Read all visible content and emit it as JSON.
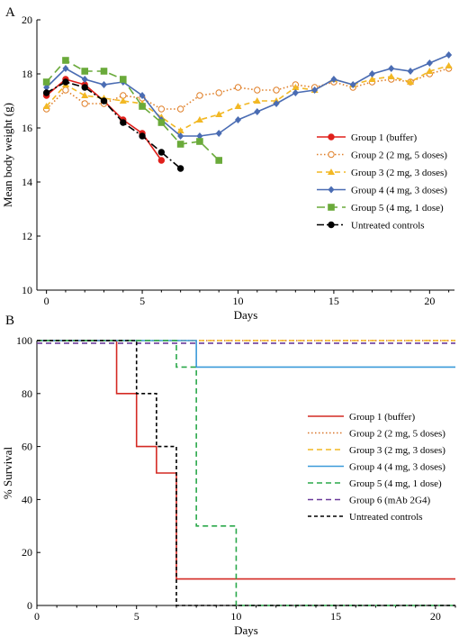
{
  "chart_data": [
    {
      "panel_label": "A",
      "type": "line",
      "xlabel": "Days",
      "ylabel": "Mean body weight (g)",
      "xlim": [
        -0.5,
        21.3
      ],
      "ylim": [
        10,
        20
      ],
      "xticks": [
        0,
        5,
        10,
        15,
        20
      ],
      "yticks": [
        10,
        12,
        14,
        16,
        18,
        20
      ],
      "legend_position": "center-right",
      "series": [
        {
          "name": "Group 1 (buffer)",
          "color": "#e0201b",
          "dash": "solid",
          "marker": "circle",
          "x": [
            0,
            1,
            2,
            3,
            4,
            5,
            6
          ],
          "y": [
            17.2,
            17.8,
            17.6,
            17.0,
            16.3,
            15.8,
            14.8
          ]
        },
        {
          "name": "Group 2 (2 mg, 5 doses)",
          "color": "#e0802a",
          "dash": "dotted",
          "marker": "open-circle",
          "x": [
            0,
            1,
            2,
            3,
            4,
            5,
            6,
            7,
            8,
            9,
            10,
            11,
            12,
            13,
            14,
            15,
            16,
            17,
            18,
            19,
            20,
            21
          ],
          "y": [
            16.7,
            17.4,
            16.9,
            16.9,
            17.2,
            17.1,
            16.7,
            16.7,
            17.2,
            17.3,
            17.5,
            17.4,
            17.4,
            17.6,
            17.5,
            17.7,
            17.5,
            17.7,
            17.8,
            17.7,
            18.0,
            18.2
          ]
        },
        {
          "name": "Group 3 (2 mg, 3 doses)",
          "color": "#f2b824",
          "dash": "dashed",
          "marker": "triangle",
          "x": [
            0,
            1,
            2,
            3,
            4,
            5,
            6,
            7,
            8,
            9,
            10,
            11,
            12,
            13,
            14,
            15,
            16,
            17,
            18,
            19,
            20,
            21
          ],
          "y": [
            16.8,
            17.6,
            17.2,
            17.1,
            17.0,
            16.9,
            16.4,
            15.9,
            16.3,
            16.5,
            16.8,
            17.0,
            17.0,
            17.5,
            17.4,
            17.8,
            17.6,
            17.8,
            17.9,
            17.7,
            18.1,
            18.3
          ]
        },
        {
          "name": "Group 4 (4 mg, 3 doses)",
          "color": "#4a6cb3",
          "dash": "solid",
          "marker": "diamond",
          "x": [
            0,
            1,
            2,
            3,
            4,
            5,
            6,
            7,
            8,
            9,
            10,
            11,
            12,
            13,
            14,
            15,
            16,
            17,
            18,
            19,
            20,
            21
          ],
          "y": [
            17.5,
            18.2,
            17.8,
            17.6,
            17.7,
            17.2,
            16.3,
            15.7,
            15.7,
            15.8,
            16.3,
            16.6,
            16.9,
            17.3,
            17.4,
            17.8,
            17.6,
            18.0,
            18.2,
            18.1,
            18.4,
            18.7
          ]
        },
        {
          "name": "Group 5 (4 mg, 1 dose)",
          "color": "#6aaa3a",
          "dash": "longdash",
          "marker": "square",
          "x": [
            0,
            1,
            2,
            3,
            4,
            5,
            6,
            7,
            8,
            9
          ],
          "y": [
            17.7,
            18.5,
            18.1,
            18.1,
            17.8,
            16.8,
            16.2,
            15.4,
            15.5,
            14.8
          ]
        },
        {
          "name": "Untreated controls",
          "color": "#000000",
          "dash": "dashdot",
          "marker": "circle",
          "x": [
            0,
            1,
            2,
            3,
            4,
            5,
            6,
            7
          ],
          "y": [
            17.3,
            17.7,
            17.5,
            17.0,
            16.2,
            15.7,
            15.1,
            14.5
          ]
        }
      ]
    },
    {
      "panel_label": "B",
      "type": "line",
      "step": true,
      "xlabel": "Days",
      "ylabel": "% Survival",
      "xlim": [
        0,
        21
      ],
      "ylim": [
        0,
        100
      ],
      "xticks": [
        0,
        5,
        10,
        15,
        20
      ],
      "yticks": [
        0,
        20,
        40,
        60,
        80,
        100
      ],
      "legend_position": "center-right",
      "series": [
        {
          "name": "Group 1 (buffer)",
          "color": "#d42a24",
          "dash": "solid",
          "x": [
            0,
            4,
            5,
            6,
            7,
            21
          ],
          "y": [
            100,
            80,
            60,
            50,
            10,
            10
          ]
        },
        {
          "name": "Group 2 (2 mg, 5 doses)",
          "color": "#d9742a",
          "dash": "dotted",
          "x": [
            0,
            21
          ],
          "y": [
            100,
            100
          ]
        },
        {
          "name": "Group 3 (2 mg, 3 doses)",
          "color": "#f2b824",
          "dash": "dashed",
          "x": [
            0,
            21
          ],
          "y": [
            100,
            100
          ]
        },
        {
          "name": "Group 4 (4 mg, 3 doses)",
          "color": "#3a9ad9",
          "dash": "solid",
          "x": [
            0,
            8,
            21
          ],
          "y": [
            100,
            90,
            90
          ]
        },
        {
          "name": "Group 5 (4 mg, 1 dose)",
          "color": "#2aa84a",
          "dash": "dashed",
          "x": [
            0,
            7,
            8,
            10,
            21
          ],
          "y": [
            100,
            90,
            30,
            0,
            0
          ]
        },
        {
          "name": "Group 6 (mAb 2G4)",
          "color": "#6a3a9a",
          "dash": "dashed",
          "x": [
            0,
            21
          ],
          "y": [
            99,
            99
          ]
        },
        {
          "name": "Untreated controls",
          "color": "#000000",
          "dash": "shortdash",
          "x": [
            0,
            5,
            6,
            7,
            8,
            21
          ],
          "y": [
            100,
            80,
            60,
            0,
            0,
            0
          ]
        }
      ]
    }
  ]
}
